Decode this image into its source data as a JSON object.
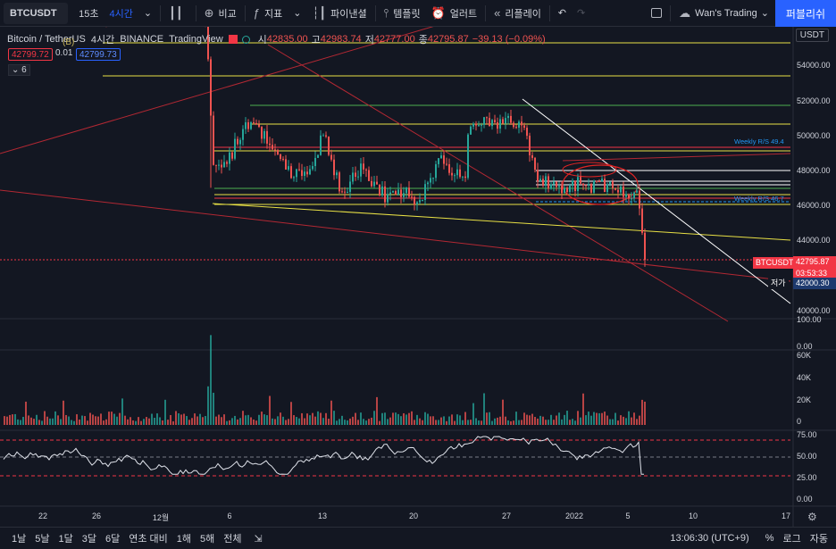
{
  "toolbar": {
    "symbol": "BTCUSDT",
    "interval_minor": "15초",
    "interval": "4시간",
    "compare": "비교",
    "indicators": "지표",
    "pine": "파이낸셜",
    "templates": "템플릿",
    "alert": "얼러트",
    "replay": "리플레이",
    "layout_name": "Wan's Trading",
    "publish": "퍼블리쉬"
  },
  "legend": {
    "pair": "Bitcoin / TetherUS",
    "interval": "4시간",
    "exchange": "BINANCE",
    "source": "TradingView",
    "open_label": "시",
    "open": "42835.00",
    "high_label": "고",
    "high": "42983.74",
    "low_label": "저",
    "low": "42777.00",
    "close_label": "종",
    "close": "42795.87",
    "change": "−39.13 (−0.09%)",
    "sell_price": "42799.72",
    "spread": "0.01",
    "buy_price": "42799.73",
    "b_marker": "(B)",
    "collapse": "6",
    "currency": "USDT"
  },
  "price_axis": {
    "ticks": [
      "54000.00",
      "52000.00",
      "50000.00",
      "48000.00",
      "46000.00",
      "44000.00",
      "40000.00"
    ],
    "last_symbol": "BTCUSDT",
    "last_price": "42795.87",
    "countdown": "03:53:33",
    "low_tag_label": "저가",
    "low_tag_value": "42000.30",
    "weekly_1": "Weekly R/S 49.4",
    "weekly_2": "Weekly R/S 46.7"
  },
  "volume_axis": {
    "ticks": [
      "100.00",
      "0.00",
      "60K",
      "40K",
      "20K",
      "0"
    ]
  },
  "rsi_axis": {
    "ticks": [
      "75.00",
      "50.00",
      "25.00",
      "0.00"
    ]
  },
  "time_axis": {
    "ticks": [
      "22",
      "26",
      "12월",
      "6",
      "13",
      "20",
      "27",
      "2022",
      "5",
      "10",
      "17"
    ]
  },
  "bottom": {
    "ranges": [
      "1날",
      "5날",
      "1달",
      "3달",
      "6달",
      "연초 대비",
      "1해",
      "5해",
      "전체"
    ],
    "clock": "13:06:30 (UTC+9)",
    "percent": "%",
    "log": "로그",
    "auto": "자동"
  },
  "colors": {
    "bg": "#131722",
    "up": "#26a69a",
    "down": "#ef5350",
    "accent": "#2962ff",
    "yellow": "#e8e045"
  }
}
